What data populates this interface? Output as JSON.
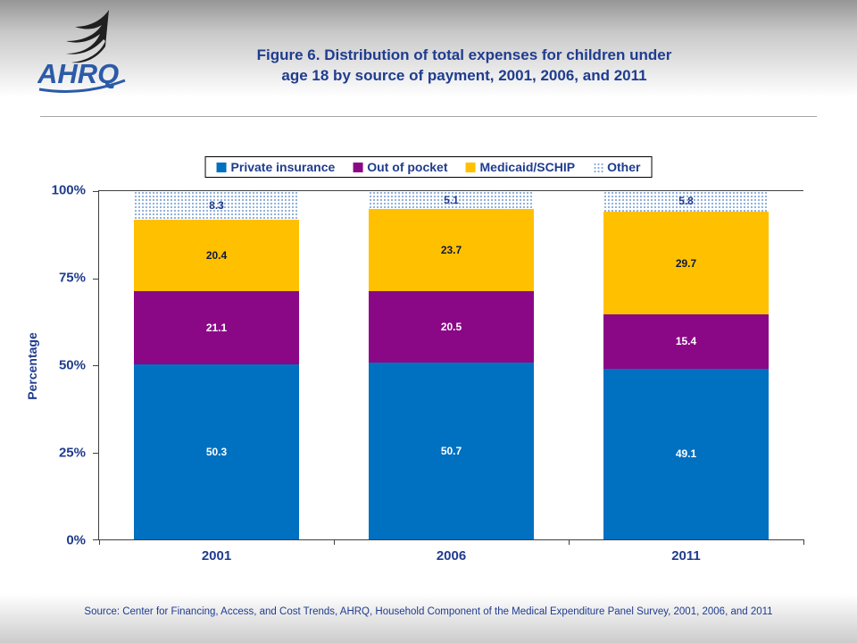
{
  "header": {
    "title_line1": "Figure 6. Distribution of total expenses for children under",
    "title_line2": "age 18 by source of payment, 2001, 2006, and 2011",
    "logo_text": "AHRQ"
  },
  "footer": {
    "source": "Source: Center for Financing, Access, and Cost Trends, AHRQ, Household Component of the Medical Expenditure Panel Survey, 2001, 2006, and 2011"
  },
  "colors": {
    "title_text": "#1F3C8F",
    "private_insurance": "#0070C0",
    "out_of_pocket": "#8A0886",
    "medicaid_schip": "#FFC000",
    "other_dots": "#7FA5D5",
    "axis": "#404040"
  },
  "chart_data": {
    "type": "bar",
    "stacked": true,
    "title": "",
    "categories": [
      "2001",
      "2006",
      "2011"
    ],
    "series": [
      {
        "name": "Private insurance",
        "color": "#0070C0",
        "label_color": "#FFFFFF",
        "values": [
          50.3,
          50.7,
          49.1
        ]
      },
      {
        "name": "Out of pocket",
        "color": "#8A0886",
        "label_color": "#FFFFFF",
        "values": [
          21.1,
          20.5,
          15.4
        ]
      },
      {
        "name": "Medicaid/SCHIP",
        "color": "#FFC000",
        "label_color": "#101840",
        "values": [
          20.4,
          23.7,
          29.7
        ]
      },
      {
        "name": "Other",
        "color": "pattern-dots",
        "label_color": "#1F3C8F",
        "values": [
          8.3,
          5.1,
          5.8
        ]
      }
    ],
    "xlabel": "",
    "ylabel": "Percentage",
    "ylim": [
      0,
      100
    ],
    "yticks": [
      "0%",
      "25%",
      "50%",
      "75%",
      "100%"
    ],
    "grid": false,
    "legend_position": "top"
  }
}
